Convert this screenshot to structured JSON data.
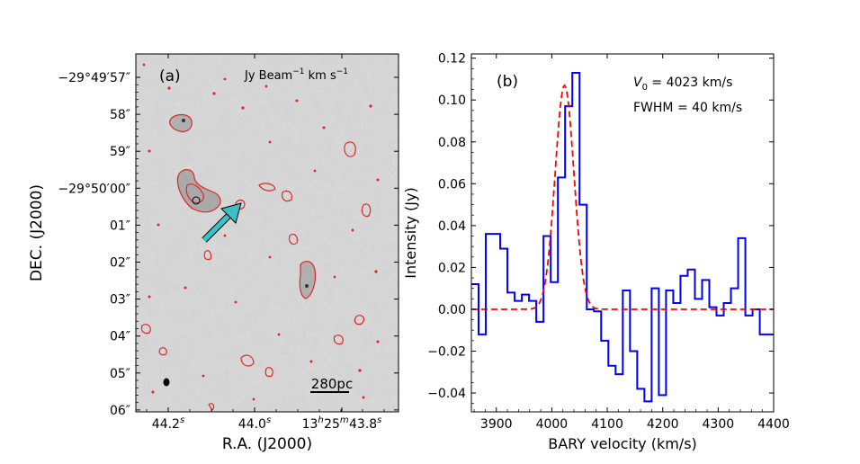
{
  "chart_data": [
    {
      "type": "heatmap",
      "panel_label": "(a)",
      "unit_label": {
        "pre": "Jy Beam",
        "exp1": "−1",
        "mid": " km s",
        "exp2": "−1"
      },
      "xlabel": "R.A. (J2000)",
      "ylabel": "DEC. (J2000)",
      "x_ticks": [
        {
          "main": "44.2",
          "sup": "s"
        },
        {
          "main": "44.0",
          "sup": "s"
        },
        {
          "main": "13",
          "sup": "h",
          "main2": "25",
          "sup2": "m",
          "main3": "43.8",
          "sup3": "s"
        }
      ],
      "y_ticks": [
        "−29°49′57″",
        "58″",
        "59″",
        "−29°50′00″",
        "01″",
        "02″",
        "03″",
        "04″",
        "05″",
        "06″"
      ],
      "scale_bar_label": "280pc",
      "arrow_color": "#3cc0c6",
      "contour_color": "#e0262a"
    },
    {
      "type": "line",
      "panel_label": "(b)",
      "annotation_v0": {
        "sym": "V",
        "sub": "0",
        "rest": " = 4023 km/s"
      },
      "annotation_fwhm": "FWHM = 40 km/s",
      "xlabel": "BARY velocity (km/s)",
      "ylabel": "Intensity (Jy)",
      "xlim": [
        3855,
        4400
      ],
      "ylim": [
        -0.049,
        0.122
      ],
      "x_ticks": [
        3900,
        4000,
        4100,
        4200,
        4300,
        4400
      ],
      "y_ticks": [
        "0.12",
        "0.10",
        "0.08",
        "0.06",
        "0.04",
        "0.02",
        "0.00",
        "−0.02",
        "−0.04"
      ],
      "y_tick_values": [
        0.12,
        0.1,
        0.08,
        0.06,
        0.04,
        0.02,
        0.0,
        -0.02,
        -0.04
      ],
      "series": [
        {
          "style": "steps",
          "color": "#0000ff",
          "edges": [
            3855,
            3868,
            3881,
            3894,
            3907,
            3920,
            3933,
            3946,
            3959,
            3972,
            3985,
            3998,
            4011,
            4024,
            4037,
            4050,
            4063,
            4076,
            4089,
            4102,
            4115,
            4128,
            4141,
            4154,
            4167,
            4180,
            4193,
            4206,
            4219,
            4232,
            4245,
            4258,
            4271,
            4284,
            4297,
            4310,
            4323,
            4336,
            4349,
            4362,
            4375,
            4388,
            4400
          ],
          "values": [
            0.012,
            -0.012,
            0.036,
            0.036,
            0.029,
            0.008,
            0.004,
            0.007,
            0.004,
            -0.006,
            0.035,
            0.013,
            0.063,
            0.097,
            0.113,
            0.05,
            0.0,
            -0.001,
            -0.015,
            -0.027,
            -0.031,
            0.009,
            -0.02,
            -0.038,
            -0.044,
            0.01,
            -0.041,
            0.009,
            0.003,
            0.016,
            0.019,
            0.005,
            0.014,
            0.001,
            -0.003,
            0.003,
            0.01,
            0.034,
            -0.003,
            0.0,
            -0.012,
            -0.012
          ]
        },
        {
          "style": "dashed",
          "color": "#ff0000",
          "fit": {
            "center": 4023,
            "fwhm": 40,
            "amplitude": 0.107
          }
        }
      ]
    }
  ]
}
